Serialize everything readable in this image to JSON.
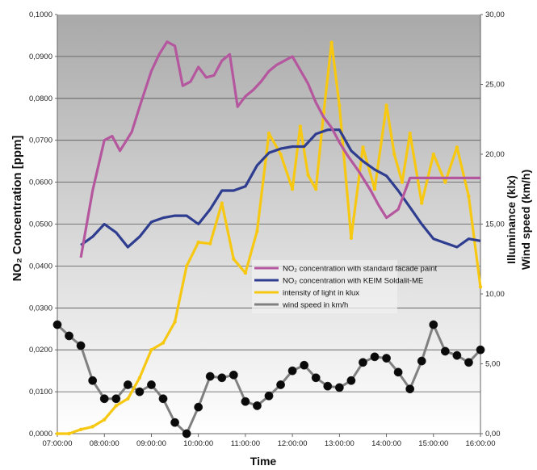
{
  "chart_data": {
    "type": "line",
    "xlabel": "Time",
    "ylabel_left": "NO₂ Concentration [ppm]",
    "ylabel_right": [
      "Illuminance (klx)",
      "Wind speed (km/h)"
    ],
    "x_ticks": [
      "07:00:00",
      "08:00:00",
      "09:00:00",
      "10:00:00",
      "11:00:00",
      "12:00:00",
      "13:00:00",
      "14:00:00",
      "15:00:00",
      "16:00:00"
    ],
    "y_left_ticks": [
      "0,0000",
      "0,0100",
      "0,0200",
      "0,0300",
      "0,0400",
      "0,0500",
      "0,0600",
      "0,0700",
      "0,0800",
      "0,0900",
      "0,1000"
    ],
    "y_right_ticks": [
      "0,00",
      "5,00",
      "10,00",
      "15,00",
      "20,00",
      "25,00",
      "30,00"
    ],
    "ylim_left": [
      0,
      0.1
    ],
    "ylim_right": [
      0,
      30
    ],
    "xlim_hours": [
      7,
      16
    ],
    "legend_position": "center-right",
    "grid": true,
    "series": [
      {
        "name": "NO₂ concentration with standard facade paint",
        "axis": "left",
        "color": "#b5579e",
        "marker": "none",
        "x": [
          "07:30",
          "07:45",
          "08:00",
          "08:10",
          "08:20",
          "08:35",
          "08:45",
          "09:00",
          "09:10",
          "09:20",
          "09:30",
          "09:40",
          "09:50",
          "10:00",
          "10:10",
          "10:20",
          "10:30",
          "10:40",
          "10:50",
          "11:00",
          "11:10",
          "11:20",
          "11:30",
          "11:40",
          "12:00",
          "12:20",
          "12:30",
          "12:40",
          "12:50",
          "13:00",
          "13:10",
          "13:25",
          "13:40",
          "13:50",
          "14:00",
          "14:15",
          "14:30",
          "14:45",
          "15:00",
          "15:15",
          "15:30",
          "15:45",
          "16:00"
        ],
        "values": [
          0.042,
          0.058,
          0.07,
          0.071,
          0.0675,
          0.072,
          0.078,
          0.0865,
          0.0905,
          0.0935,
          0.0925,
          0.083,
          0.084,
          0.0875,
          0.085,
          0.0855,
          0.089,
          0.0905,
          0.078,
          0.0805,
          0.082,
          0.084,
          0.0865,
          0.088,
          0.09,
          0.0835,
          0.079,
          0.0755,
          0.073,
          0.0695,
          0.0665,
          0.0625,
          0.058,
          0.0545,
          0.0515,
          0.0535,
          0.061,
          0.061,
          0.061,
          0.061,
          0.061,
          0.061,
          0.061
        ]
      },
      {
        "name": "NO₂ concentration with KEIM Soldalit-ME",
        "axis": "left",
        "color": "#2e3d8f",
        "marker": "none",
        "x": [
          "07:30",
          "07:45",
          "08:00",
          "08:15",
          "08:30",
          "08:45",
          "09:00",
          "09:15",
          "09:30",
          "09:45",
          "10:00",
          "10:15",
          "10:30",
          "10:45",
          "11:00",
          "11:15",
          "11:30",
          "11:45",
          "12:00",
          "12:15",
          "12:30",
          "12:45",
          "13:00",
          "13:15",
          "13:30",
          "13:45",
          "14:00",
          "14:15",
          "14:30",
          "14:45",
          "15:00",
          "15:15",
          "15:30",
          "15:45",
          "16:00"
        ],
        "values": [
          0.045,
          0.047,
          0.05,
          0.048,
          0.0445,
          0.047,
          0.0505,
          0.0515,
          0.052,
          0.052,
          0.05,
          0.0535,
          0.058,
          0.058,
          0.059,
          0.064,
          0.067,
          0.068,
          0.0685,
          0.0685,
          0.0715,
          0.0725,
          0.0725,
          0.0675,
          0.065,
          0.063,
          0.0615,
          0.058,
          0.054,
          0.05,
          0.0465,
          0.0455,
          0.0445,
          0.0465,
          0.046
        ]
      },
      {
        "name": "intensity of light in klux",
        "axis": "right",
        "color": "#f7c812",
        "marker": "dot",
        "x": [
          "07:00",
          "07:15",
          "07:30",
          "07:45",
          "08:00",
          "08:15",
          "08:30",
          "08:45",
          "09:00",
          "09:15",
          "09:30",
          "09:45",
          "10:00",
          "10:15",
          "10:30",
          "10:45",
          "11:00",
          "11:15",
          "11:30",
          "11:45",
          "12:00",
          "12:10",
          "12:20",
          "12:30",
          "12:40",
          "12:50",
          "13:00",
          "13:15",
          "13:30",
          "13:45",
          "14:00",
          "14:10",
          "14:20",
          "14:30",
          "14:45",
          "15:00",
          "15:15",
          "15:30",
          "15:45",
          "16:00"
        ],
        "values": [
          0.0,
          0.0,
          0.3,
          0.5,
          1.0,
          2.0,
          2.5,
          4.0,
          6.0,
          6.5,
          8.0,
          12.0,
          13.7,
          13.6,
          16.5,
          12.5,
          11.5,
          14.5,
          21.5,
          20.0,
          17.5,
          22.0,
          18.5,
          17.5,
          23.0,
          28.0,
          23.5,
          14.0,
          20.5,
          17.5,
          23.5,
          20.0,
          18.0,
          21.5,
          16.5,
          20.0,
          18.0,
          20.5,
          17.0,
          10.5
        ]
      },
      {
        "name": "wind speed in km/h",
        "axis": "right",
        "color": "#808080",
        "marker": "black-circle",
        "x": [
          "07:00",
          "07:15",
          "07:30",
          "07:45",
          "08:00",
          "08:15",
          "08:30",
          "08:45",
          "09:00",
          "09:15",
          "09:30",
          "09:45",
          "10:00",
          "10:15",
          "10:30",
          "10:45",
          "11:00",
          "11:15",
          "11:30",
          "11:45",
          "12:00",
          "12:15",
          "12:30",
          "12:45",
          "13:00",
          "13:15",
          "13:30",
          "13:45",
          "14:00",
          "14:15",
          "14:30",
          "14:45",
          "15:00",
          "15:15",
          "15:30",
          "15:45",
          "16:00"
        ],
        "values": [
          7.8,
          7.0,
          6.3,
          3.8,
          2.5,
          2.5,
          3.5,
          3.0,
          3.5,
          2.5,
          0.8,
          0.0,
          1.9,
          4.1,
          4.0,
          4.2,
          2.3,
          2.0,
          2.7,
          3.5,
          4.5,
          4.9,
          4.0,
          3.4,
          3.3,
          3.8,
          5.1,
          5.5,
          5.4,
          4.4,
          3.2,
          5.2,
          7.8,
          5.9,
          5.6,
          5.1,
          6.0
        ]
      }
    ]
  }
}
